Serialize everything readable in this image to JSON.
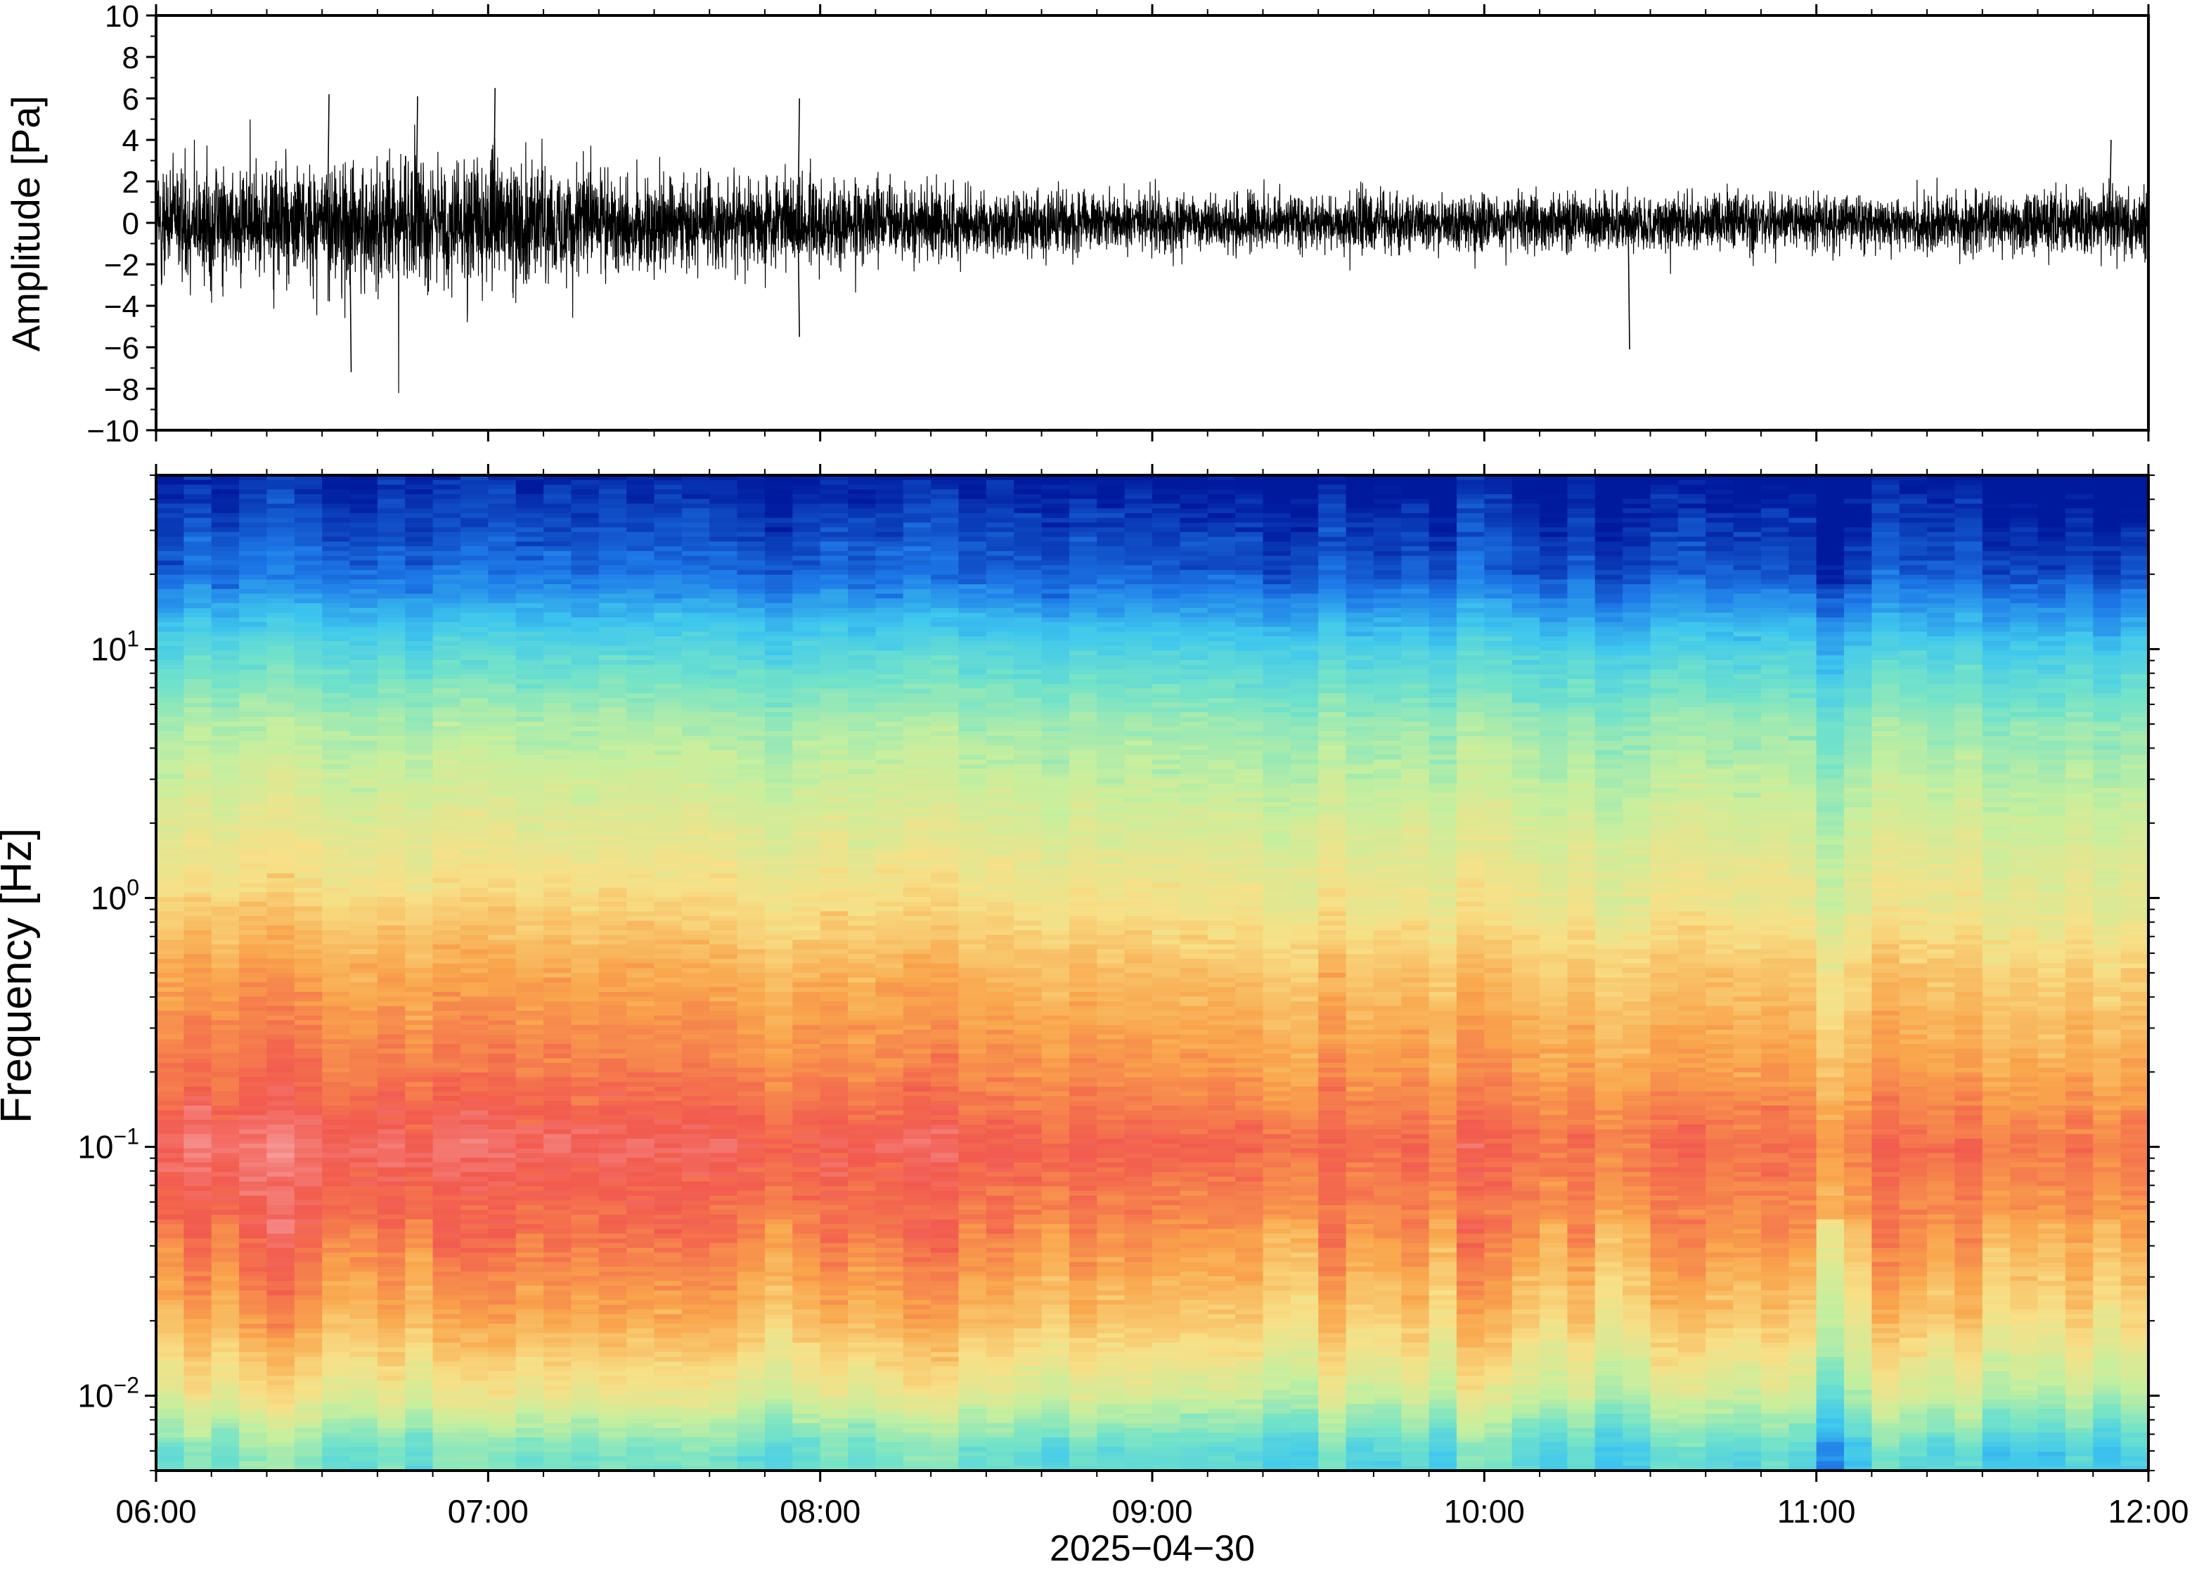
{
  "chart_data": [
    {
      "type": "line",
      "panel": "waveform",
      "ylabel": "Amplitude [Pa]",
      "ylim": [
        -10,
        10
      ],
      "yticks": [
        10,
        8,
        6,
        4,
        2,
        0,
        -2,
        -4,
        -6,
        -8,
        -10
      ],
      "ytick_labels": [
        "10",
        "8",
        "6",
        "4",
        "2",
        "0",
        "−2",
        "−4",
        "−6",
        "−8",
        "−10"
      ],
      "x_range": [
        "06:00",
        "12:00"
      ],
      "series": [
        {
          "x": [
            "06:00",
            "06:30",
            "07:00",
            "07:30",
            "08:00",
            "08:30",
            "09:00",
            "09:30",
            "10:00",
            "10:30",
            "11:00",
            "11:30",
            "12:00"
          ],
          "envelope_max": [
            4.0,
            4.5,
            4.5,
            3.5,
            3.0,
            2.5,
            2.0,
            2.0,
            2.0,
            2.0,
            2.0,
            2.0,
            2.5
          ],
          "envelope_min": [
            -4.0,
            -4.5,
            -4.5,
            -3.5,
            -3.0,
            -2.5,
            -2.0,
            -2.0,
            -2.0,
            -2.0,
            -2.0,
            -2.0,
            -2.5
          ],
          "peaks": [
            {
              "time": "06:31",
              "value": 6.2
            },
            {
              "time": "06:35",
              "value": -7.2
            },
            {
              "time": "06:47",
              "value": 6.1
            },
            {
              "time": "07:01",
              "value": 6.5
            },
            {
              "time": "07:56",
              "value": 6.0
            },
            {
              "time": "07:56",
              "value": -5.5
            },
            {
              "time": "10:26",
              "value": -6.1
            },
            {
              "time": "11:53",
              "value": 4.0
            }
          ]
        }
      ]
    },
    {
      "type": "heatmap",
      "panel": "spectrogram",
      "ylabel": "Frequency [Hz]",
      "yscale": "log",
      "ylim": [
        0.005,
        50
      ],
      "yticks": [
        0.01,
        0.1,
        1,
        10
      ],
      "ytick_labels": [
        {
          "base": "10",
          "exp": "−2"
        },
        {
          "base": "10",
          "exp": "−1"
        },
        {
          "base": "10",
          "exp": "0"
        },
        {
          "base": "10",
          "exp": "1"
        }
      ],
      "xlabel": "2025−04−30",
      "x_range": [
        "06:00",
        "12:00"
      ],
      "xticks": [
        "06:00",
        "07:00",
        "08:00",
        "09:00",
        "10:00",
        "11:00",
        "12:00"
      ],
      "colormap": "rainbow",
      "color_stops": [
        "#001a9e",
        "#1e7ae8",
        "#3fc8ee",
        "#74e3c8",
        "#c6ef9e",
        "#f7e087",
        "#f9a64c",
        "#f25a4e",
        "#f6b2b5"
      ],
      "profile": {
        "frequency_hz": [
          50,
          20,
          10,
          5,
          2,
          1,
          0.5,
          0.2,
          0.1,
          0.05,
          0.02,
          0.01,
          0.006
        ],
        "power_level": [
          0.0,
          0.1,
          0.3,
          0.45,
          0.55,
          0.62,
          0.72,
          0.8,
          0.88,
          0.82,
          0.7,
          0.55,
          0.35
        ]
      },
      "time_trend": {
        "x": [
          "06:00",
          "08:00",
          "10:00",
          "12:00"
        ],
        "relative_level": [
          0.04,
          0.0,
          -0.04,
          -0.05
        ]
      }
    }
  ]
}
